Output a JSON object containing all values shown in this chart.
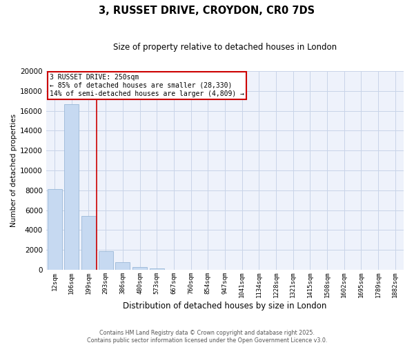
{
  "title": "3, RUSSET DRIVE, CROYDON, CR0 7DS",
  "subtitle": "Size of property relative to detached houses in London",
  "xlabel": "Distribution of detached houses by size in London",
  "ylabel": "Number of detached properties",
  "bar_color": "#c6d9f1",
  "bar_edge_color": "#9ab8d8",
  "background_color": "#eef2fb",
  "grid_color": "#c8d4e8",
  "vline_color": "#cc0000",
  "vline_x": 2.45,
  "annotation_box_color": "#cc0000",
  "annotation_title": "3 RUSSET DRIVE: 250sqm",
  "annotation_line2": "← 85% of detached houses are smaller (28,330)",
  "annotation_line3": "14% of semi-detached houses are larger (4,809) →",
  "categories": [
    "12sqm",
    "106sqm",
    "199sqm",
    "293sqm",
    "386sqm",
    "480sqm",
    "573sqm",
    "667sqm",
    "760sqm",
    "854sqm",
    "947sqm",
    "1041sqm",
    "1134sqm",
    "1228sqm",
    "1321sqm",
    "1415sqm",
    "1508sqm",
    "1602sqm",
    "1695sqm",
    "1789sqm",
    "1882sqm"
  ],
  "values": [
    8100,
    16700,
    5400,
    1850,
    750,
    280,
    130,
    0,
    0,
    0,
    0,
    0,
    0,
    0,
    0,
    0,
    0,
    0,
    0,
    0,
    0
  ],
  "ylim": [
    0,
    20000
  ],
  "yticks": [
    0,
    2000,
    4000,
    6000,
    8000,
    10000,
    12000,
    14000,
    16000,
    18000,
    20000
  ],
  "footer_line1": "Contains HM Land Registry data © Crown copyright and database right 2025.",
  "footer_line2": "Contains public sector information licensed under the Open Government Licence v3.0."
}
